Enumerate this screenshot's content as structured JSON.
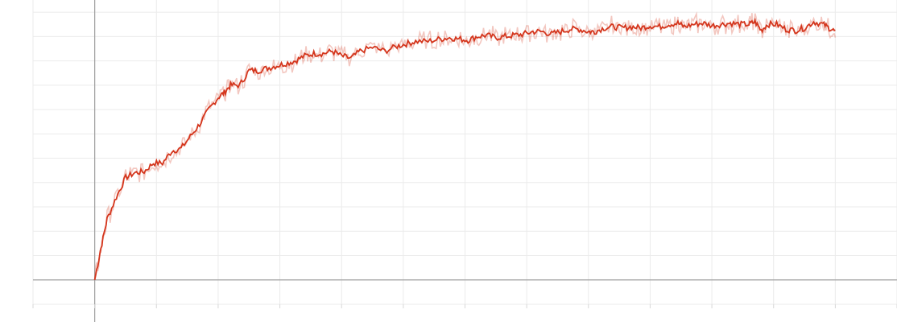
{
  "chart_data": {
    "type": "line",
    "title": "",
    "xlabel": "",
    "ylabel": "",
    "grid": true,
    "legend": "none",
    "xlim": [
      -1,
      13
    ],
    "ylim": [
      -0.1,
      1.15
    ],
    "x_gridlines": [
      -1,
      0,
      1,
      2,
      3,
      4,
      5,
      6,
      7,
      8,
      9,
      10,
      11,
      12,
      13
    ],
    "y_gridlines": [
      -0.1,
      0,
      0.1,
      0.2,
      0.3,
      0.4,
      0.5,
      0.6,
      0.7,
      0.8,
      0.9,
      1.0,
      1.1
    ],
    "x_axis_at_y": 0,
    "y_axis_at_x": 0,
    "colors": {
      "smoothed": "#d4351c",
      "raw": "#d4351c"
    },
    "series": [
      {
        "style": "smoothed",
        "points": [
          [
            0.0,
            0.0
          ],
          [
            0.1,
            0.13
          ],
          [
            0.2,
            0.25
          ],
          [
            0.35,
            0.34
          ],
          [
            0.5,
            0.42
          ],
          [
            0.65,
            0.44
          ],
          [
            0.8,
            0.445
          ],
          [
            0.95,
            0.48
          ],
          [
            1.1,
            0.48
          ],
          [
            1.25,
            0.53
          ],
          [
            1.4,
            0.54
          ],
          [
            1.55,
            0.59
          ],
          [
            1.7,
            0.64
          ],
          [
            1.85,
            0.7
          ],
          [
            2.0,
            0.75
          ],
          [
            2.1,
            0.77
          ],
          [
            2.2,
            0.8
          ],
          [
            2.35,
            0.8
          ],
          [
            2.5,
            0.86
          ],
          [
            2.65,
            0.86
          ],
          [
            2.8,
            0.87
          ],
          [
            2.95,
            0.88
          ],
          [
            3.1,
            0.89
          ],
          [
            3.25,
            0.9
          ],
          [
            3.4,
            0.92
          ],
          [
            3.55,
            0.93
          ],
          [
            3.7,
            0.93
          ],
          [
            3.85,
            0.94
          ],
          [
            4.0,
            0.92
          ],
          [
            4.15,
            0.91
          ],
          [
            4.3,
            0.94
          ],
          [
            4.5,
            0.955
          ],
          [
            4.7,
            0.94
          ],
          [
            4.9,
            0.96
          ],
          [
            5.05,
            0.97
          ],
          [
            5.2,
            0.98
          ],
          [
            5.4,
            0.98
          ],
          [
            5.6,
            0.99
          ],
          [
            5.75,
            0.995
          ],
          [
            5.9,
            0.99
          ],
          [
            6.05,
            0.985
          ],
          [
            6.2,
            1.0
          ],
          [
            6.35,
            1.005
          ],
          [
            6.5,
            0.995
          ],
          [
            6.65,
            1.0
          ],
          [
            6.8,
            1.005
          ],
          [
            6.95,
            1.01
          ],
          [
            7.1,
            1.02
          ],
          [
            7.25,
            1.02
          ],
          [
            7.4,
            1.01
          ],
          [
            7.55,
            1.02
          ],
          [
            7.7,
            1.03
          ],
          [
            7.85,
            1.03
          ],
          [
            8.0,
            1.02
          ],
          [
            8.1,
            1.02
          ],
          [
            8.25,
            1.035
          ],
          [
            8.4,
            1.04
          ],
          [
            8.55,
            1.035
          ],
          [
            8.7,
            1.04
          ],
          [
            8.85,
            1.035
          ],
          [
            9.0,
            1.045
          ],
          [
            9.15,
            1.04
          ],
          [
            9.3,
            1.05
          ],
          [
            9.45,
            1.055
          ],
          [
            9.55,
            1.04
          ],
          [
            9.7,
            1.05
          ],
          [
            9.85,
            1.055
          ],
          [
            10.0,
            1.045
          ],
          [
            10.15,
            1.05
          ],
          [
            10.3,
            1.055
          ],
          [
            10.45,
            1.05
          ],
          [
            10.6,
            1.05
          ],
          [
            10.7,
            1.06
          ],
          [
            10.8,
            1.025
          ],
          [
            10.9,
            1.05
          ],
          [
            11.05,
            1.05
          ],
          [
            11.2,
            1.03
          ],
          [
            11.35,
            1.025
          ],
          [
            11.5,
            1.035
          ],
          [
            11.65,
            1.06
          ],
          [
            11.8,
            1.05
          ],
          [
            11.9,
            1.035
          ],
          [
            12.0,
            1.02
          ]
        ]
      }
    ]
  }
}
